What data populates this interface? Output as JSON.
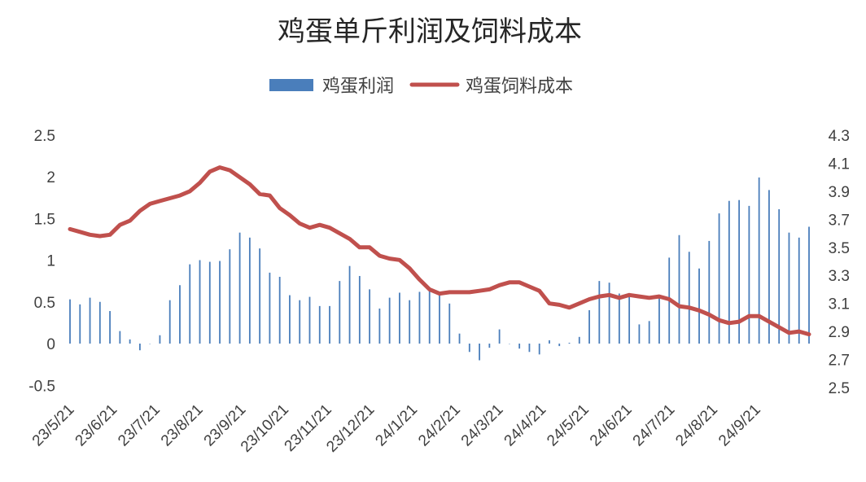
{
  "chart_data": {
    "type": "bar",
    "title": "鸡蛋单斤利润及饲料成本",
    "legend_position": "top",
    "grid": false,
    "x_tick_labels": [
      "23/5/21",
      "23/6/21",
      "23/7/21",
      "23/8/21",
      "23/9/21",
      "23/10/21",
      "23/11/21",
      "23/12/21",
      "24/1/21",
      "24/2/21",
      "24/3/21",
      "24/4/21",
      "24/5/21",
      "24/6/21",
      "24/7/21",
      "24/8/21",
      "24/9/21"
    ],
    "y_left": {
      "ticks": [
        "2.5",
        "2",
        "1.5",
        "1",
        "0.5",
        "0",
        "-0.5"
      ],
      "ylim": [
        -0.5,
        2.5
      ]
    },
    "y_right": {
      "ticks": [
        "4.3",
        "4.1",
        "3.9",
        "3.7",
        "3.5",
        "3.3",
        "3.1",
        "2.9",
        "2.7",
        "2.5"
      ],
      "ylim": [
        2.5,
        4.3
      ]
    },
    "series": [
      {
        "name": "鸡蛋利润",
        "type": "bar",
        "axis": "left",
        "color": "#4a7ebb",
        "values": [
          0.53,
          0.47,
          0.55,
          0.5,
          0.39,
          0.15,
          0.05,
          -0.08,
          0.0,
          0.1,
          0.52,
          0.7,
          0.95,
          1.0,
          0.98,
          0.99,
          1.13,
          1.33,
          1.27,
          1.14,
          0.85,
          0.8,
          0.58,
          0.52,
          0.56,
          0.45,
          0.45,
          0.75,
          0.93,
          0.81,
          0.65,
          0.42,
          0.55,
          0.61,
          0.52,
          0.62,
          0.64,
          0.6,
          0.48,
          0.12,
          -0.1,
          -0.2,
          -0.05,
          0.17,
          0.0,
          -0.06,
          -0.1,
          -0.13,
          0.04,
          -0.03,
          0.01,
          0.08,
          0.4,
          0.75,
          0.73,
          0.6,
          0.57,
          0.23,
          0.27,
          0.55,
          1.03,
          1.3,
          1.1,
          0.9,
          1.23,
          1.56,
          1.71,
          1.72,
          1.65,
          1.99,
          1.84,
          1.61,
          1.33,
          1.27,
          1.4
        ]
      },
      {
        "name": "鸡蛋饲料成本",
        "type": "line",
        "axis": "right",
        "color": "#c0504d",
        "values": [
          3.63,
          3.61,
          3.59,
          3.58,
          3.59,
          3.66,
          3.69,
          3.76,
          3.81,
          3.83,
          3.85,
          3.87,
          3.9,
          3.96,
          4.04,
          4.07,
          4.05,
          4.0,
          3.95,
          3.88,
          3.87,
          3.78,
          3.73,
          3.67,
          3.64,
          3.66,
          3.64,
          3.6,
          3.56,
          3.5,
          3.5,
          3.44,
          3.42,
          3.41,
          3.35,
          3.27,
          3.2,
          3.17,
          3.18,
          3.18,
          3.18,
          3.19,
          3.2,
          3.23,
          3.25,
          3.25,
          3.22,
          3.19,
          3.1,
          3.09,
          3.07,
          3.1,
          3.13,
          3.15,
          3.16,
          3.14,
          3.16,
          3.15,
          3.14,
          3.15,
          3.13,
          3.08,
          3.07,
          3.05,
          3.02,
          2.98,
          2.96,
          2.97,
          3.01,
          3.01,
          2.97,
          2.93,
          2.89,
          2.9,
          2.88
        ]
      }
    ]
  }
}
